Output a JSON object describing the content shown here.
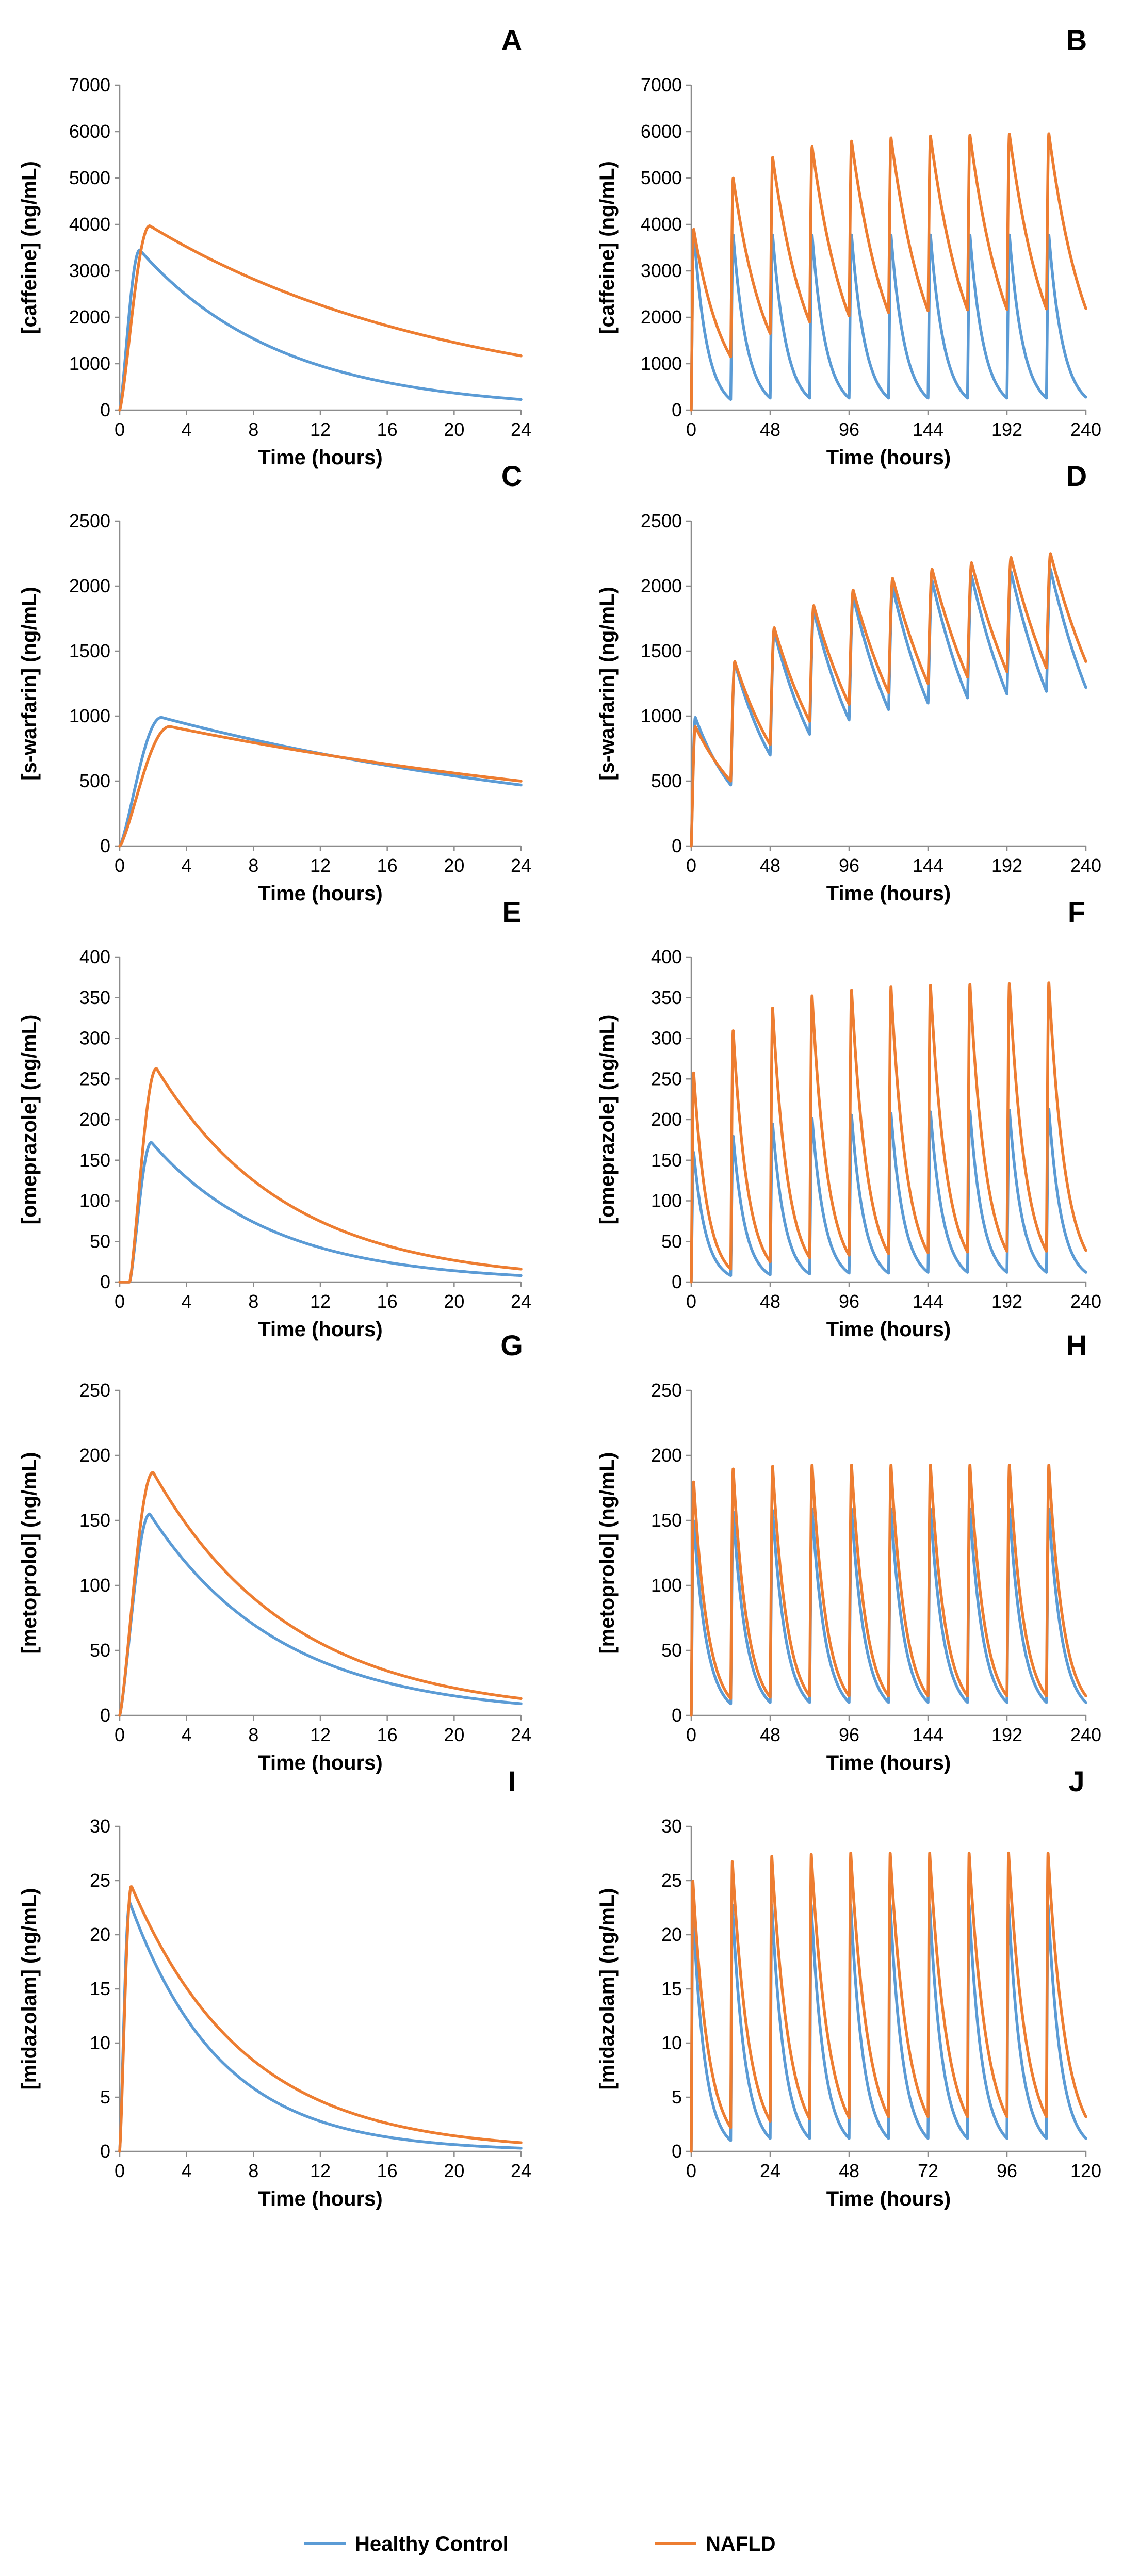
{
  "colors": {
    "healthy": "#5b9bd5",
    "nafld": "#ed7d31"
  },
  "legend": [
    {
      "name": "Healthy Control",
      "color": "#5b9bd5"
    },
    {
      "name": "NAFLD",
      "color": "#ed7d31"
    }
  ],
  "chart_data": [
    {
      "panel": "A",
      "type": "line",
      "ylabel": "[caffeine] (ng/mL)",
      "xlabel": "Time (hours)",
      "xlim": [
        0,
        24
      ],
      "xticks": [
        0,
        4,
        8,
        12,
        16,
        20,
        24
      ],
      "ylim": [
        0,
        7000
      ],
      "yticks": [
        0,
        1000,
        2000,
        3000,
        4000,
        5000,
        6000,
        7000
      ],
      "mode": "single",
      "tlag": 0,
      "series": [
        {
          "name": "Healthy Control",
          "peak": 3450,
          "tpeak": 1.2,
          "end": 230
        },
        {
          "name": "NAFLD",
          "peak": 3970,
          "tpeak": 1.8,
          "end": 1170
        }
      ]
    },
    {
      "panel": "B",
      "type": "line",
      "ylabel": "[caffeine] (ng/mL)",
      "xlabel": "Time (hours)",
      "xlim": [
        0,
        240
      ],
      "xticks": [
        0,
        48,
        96,
        144,
        192,
        240
      ],
      "ylim": [
        0,
        7000
      ],
      "yticks": [
        0,
        1000,
        2000,
        3000,
        4000,
        5000,
        6000,
        7000
      ],
      "mode": "multi",
      "interval": 24,
      "doses": 10,
      "tpeak": 1.5,
      "series": [
        {
          "name": "Healthy Control",
          "peaks": [
            3900,
            3780,
            3780,
            3780,
            3780,
            3780,
            3780,
            3780,
            3780,
            3780
          ],
          "troughs": [
            230,
            260,
            260,
            260,
            260,
            260,
            260,
            260,
            260,
            260
          ],
          "final": 280
        },
        {
          "name": "NAFLD",
          "peaks": [
            3900,
            5000,
            5450,
            5680,
            5800,
            5870,
            5910,
            5930,
            5950,
            5960
          ],
          "troughs": [
            1150,
            1650,
            1900,
            2030,
            2100,
            2140,
            2160,
            2170,
            2180,
            2190
          ],
          "final": 2190
        }
      ]
    },
    {
      "panel": "C",
      "type": "line",
      "ylabel": "[s-warfarin] (ng/mL)",
      "xlabel": "Time (hours)",
      "xlim": [
        0,
        24
      ],
      "xticks": [
        0,
        4,
        8,
        12,
        16,
        20,
        24
      ],
      "ylim": [
        0,
        2500
      ],
      "yticks": [
        0,
        500,
        1000,
        1500,
        2000,
        2500
      ],
      "mode": "single",
      "tlag": 0,
      "series": [
        {
          "name": "Healthy Control",
          "peak": 990,
          "tpeak": 2.5,
          "end": 470
        },
        {
          "name": "NAFLD",
          "peak": 920,
          "tpeak": 3.0,
          "end": 500
        }
      ]
    },
    {
      "panel": "D",
      "type": "line",
      "ylabel": "[s-warfarin] (ng/mL)",
      "xlabel": "Time (hours)",
      "xlim": [
        0,
        240
      ],
      "xticks": [
        0,
        48,
        96,
        144,
        192,
        240
      ],
      "ylim": [
        0,
        2500
      ],
      "yticks": [
        0,
        500,
        1000,
        1500,
        2000,
        2500
      ],
      "mode": "multi",
      "interval": 24,
      "doses": 10,
      "tpeak": 2.5,
      "series": [
        {
          "name": "Healthy Control",
          "peaks": [
            990,
            1410,
            1650,
            1810,
            1920,
            1990,
            2040,
            2080,
            2110,
            2130
          ],
          "troughs": [
            470,
            700,
            860,
            970,
            1050,
            1100,
            1140,
            1170,
            1190,
            1210
          ],
          "final": 1220
        },
        {
          "name": "NAFLD",
          "peaks": [
            920,
            1420,
            1680,
            1850,
            1970,
            2060,
            2130,
            2180,
            2220,
            2250
          ],
          "troughs": [
            500,
            780,
            960,
            1090,
            1180,
            1250,
            1300,
            1340,
            1370,
            1400
          ],
          "final": 1420
        }
      ]
    },
    {
      "panel": "E",
      "type": "line",
      "ylabel": "[omeprazole] (ng/mL)",
      "xlabel": "Time (hours)",
      "xlim": [
        0,
        24
      ],
      "xticks": [
        0,
        4,
        8,
        12,
        16,
        20,
        24
      ],
      "ylim": [
        0,
        400
      ],
      "yticks": [
        0,
        50,
        100,
        150,
        200,
        250,
        300,
        350,
        400
      ],
      "mode": "single",
      "tlag": 0.6,
      "series": [
        {
          "name": "Healthy Control",
          "peak": 172,
          "tpeak": 1.9,
          "end": 8
        },
        {
          "name": "NAFLD",
          "peak": 263,
          "tpeak": 2.2,
          "end": 16
        }
      ]
    },
    {
      "panel": "F",
      "type": "line",
      "ylabel": "[omeprazole] (ng/mL)",
      "xlabel": "Time (hours)",
      "xlim": [
        0,
        240
      ],
      "xticks": [
        0,
        48,
        96,
        144,
        192,
        240
      ],
      "ylim": [
        0,
        400
      ],
      "yticks": [
        0,
        50,
        100,
        150,
        200,
        250,
        300,
        350,
        400
      ],
      "mode": "multi",
      "interval": 24,
      "doses": 10,
      "tpeak": 1.5,
      "series": [
        {
          "name": "Healthy Control",
          "peaks": [
            160,
            180,
            195,
            202,
            206,
            208,
            210,
            211,
            212,
            213
          ],
          "troughs": [
            8,
            9,
            10,
            11,
            11,
            12,
            12,
            12,
            12,
            12
          ],
          "final": 12
        },
        {
          "name": "NAFLD",
          "peaks": [
            258,
            310,
            338,
            353,
            360,
            364,
            366,
            367,
            368,
            369
          ],
          "troughs": [
            16,
            25,
            30,
            33,
            35,
            36,
            37,
            38,
            38,
            39
          ],
          "final": 39
        }
      ]
    },
    {
      "panel": "G",
      "type": "line",
      "ylabel": "[metoprolol] (ng/mL)",
      "xlabel": "Time (hours)",
      "xlim": [
        0,
        24
      ],
      "xticks": [
        0,
        4,
        8,
        12,
        16,
        20,
        24
      ],
      "ylim": [
        0,
        250
      ],
      "yticks": [
        0,
        50,
        100,
        150,
        200,
        250
      ],
      "mode": "single",
      "tlag": 0,
      "series": [
        {
          "name": "Healthy Control",
          "peak": 155,
          "tpeak": 1.8,
          "end": 9
        },
        {
          "name": "NAFLD",
          "peak": 187,
          "tpeak": 2.0,
          "end": 13
        }
      ]
    },
    {
      "panel": "H",
      "type": "line",
      "ylabel": "[metoprolol] (ng/mL)",
      "xlabel": "Time (hours)",
      "xlim": [
        0,
        240
      ],
      "xticks": [
        0,
        48,
        96,
        144,
        192,
        240
      ],
      "ylim": [
        0,
        250
      ],
      "yticks": [
        0,
        50,
        100,
        150,
        200,
        250
      ],
      "mode": "multi",
      "interval": 24,
      "doses": 10,
      "tpeak": 1.5,
      "series": [
        {
          "name": "Healthy Control",
          "peaks": [
            150,
            157,
            158,
            159,
            159,
            159,
            159,
            159,
            159,
            159
          ],
          "troughs": [
            9,
            10,
            10,
            10,
            10,
            10,
            10,
            10,
            10,
            10
          ],
          "final": 10
        },
        {
          "name": "NAFLD",
          "peaks": [
            180,
            190,
            192,
            193,
            193,
            193,
            193,
            193,
            193,
            193
          ],
          "troughs": [
            13,
            14,
            15,
            15,
            15,
            15,
            15,
            15,
            15,
            15
          ],
          "final": 15
        }
      ]
    },
    {
      "panel": "I",
      "type": "line",
      "ylabel": "[midazolam] (ng/mL)",
      "xlabel": "Time (hours)",
      "xlim": [
        0,
        24
      ],
      "xticks": [
        0,
        4,
        8,
        12,
        16,
        20,
        24
      ],
      "ylim": [
        0,
        30
      ],
      "yticks": [
        0,
        5,
        10,
        15,
        20,
        25,
        30
      ],
      "mode": "single",
      "tlag": 0,
      "series": [
        {
          "name": "Healthy Control",
          "peak": 23,
          "tpeak": 0.6,
          "end": 0.3
        },
        {
          "name": "NAFLD",
          "peak": 24.5,
          "tpeak": 0.7,
          "end": 0.8
        }
      ]
    },
    {
      "panel": "J",
      "type": "line",
      "ylabel": "[midazolam] (ng/mL)",
      "xlabel": "Time (hours)",
      "xlim": [
        0,
        120
      ],
      "xticks": [
        0,
        24,
        48,
        72,
        96,
        120
      ],
      "ylim": [
        0,
        30
      ],
      "yticks": [
        0,
        5,
        10,
        15,
        20,
        25,
        30
      ],
      "mode": "multi",
      "interval": 12,
      "doses": 10,
      "tpeak": 0.5,
      "series": [
        {
          "name": "Healthy Control",
          "peaks": [
            22.5,
            22.8,
            22.8,
            22.8,
            22.8,
            22.8,
            22.8,
            22.8,
            22.8,
            22.8
          ],
          "troughs": [
            1.0,
            1.2,
            1.2,
            1.2,
            1.2,
            1.2,
            1.2,
            1.2,
            1.2,
            1.2
          ],
          "final": 1.2
        },
        {
          "name": "NAFLD",
          "peaks": [
            25,
            26.8,
            27.3,
            27.5,
            27.6,
            27.6,
            27.6,
            27.6,
            27.6,
            27.6
          ],
          "troughs": [
            2.2,
            2.8,
            3.0,
            3.1,
            3.2,
            3.2,
            3.2,
            3.2,
            3.2,
            3.2
          ],
          "final": 3.2
        }
      ]
    }
  ]
}
